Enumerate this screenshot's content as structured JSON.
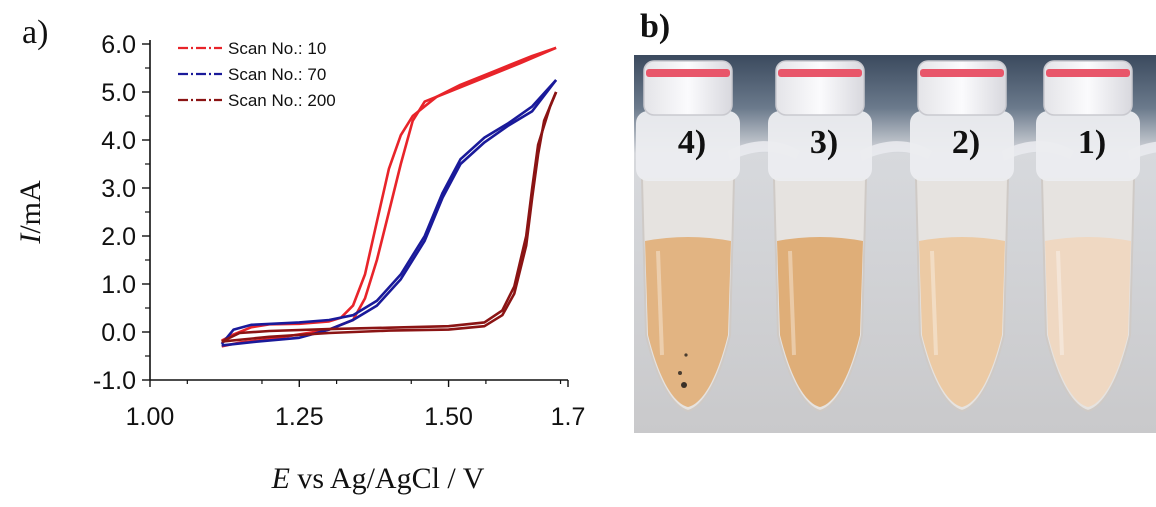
{
  "panel_a_label": "a)",
  "panel_b_label": "b)",
  "chart_data": {
    "type": "line",
    "xlabel_var": "E",
    "xlabel_rest": " vs Ag/AgCl / V",
    "ylabel_var": "I",
    "ylabel_rest": "/mA",
    "xlim": [
      1.0,
      1.7
    ],
    "ylim": [
      -1.0,
      6.0
    ],
    "x_ticks": [
      1.0,
      1.25,
      1.5,
      1.7
    ],
    "x_tick_labels": [
      "1.00",
      "1.25",
      "1.50",
      "1.7"
    ],
    "y_ticks": [
      -1.0,
      0.0,
      1.0,
      2.0,
      3.0,
      4.0,
      5.0,
      6.0
    ],
    "y_tick_labels": [
      "-1.0",
      "0.0",
      "1.0",
      "2.0",
      "3.0",
      "4.0",
      "5.0",
      "6.0"
    ],
    "legend_position": "top-left",
    "series": [
      {
        "name": "Scan No.: 10",
        "color": "#e8242a",
        "forward": [
          [
            1.12,
            -0.18
          ],
          [
            1.14,
            -0.05
          ],
          [
            1.17,
            0.1
          ],
          [
            1.2,
            0.16
          ],
          [
            1.25,
            0.17
          ],
          [
            1.3,
            0.22
          ],
          [
            1.32,
            0.3
          ],
          [
            1.34,
            0.55
          ],
          [
            1.36,
            1.2
          ],
          [
            1.38,
            2.3
          ],
          [
            1.4,
            3.4
          ],
          [
            1.42,
            4.1
          ],
          [
            1.44,
            4.5
          ],
          [
            1.48,
            4.9
          ],
          [
            1.52,
            5.15
          ],
          [
            1.58,
            5.45
          ],
          [
            1.64,
            5.75
          ],
          [
            1.68,
            5.92
          ]
        ],
        "reverse": [
          [
            1.68,
            5.92
          ],
          [
            1.62,
            5.6
          ],
          [
            1.55,
            5.25
          ],
          [
            1.5,
            5.0
          ],
          [
            1.46,
            4.8
          ],
          [
            1.44,
            4.4
          ],
          [
            1.42,
            3.5
          ],
          [
            1.4,
            2.5
          ],
          [
            1.38,
            1.5
          ],
          [
            1.36,
            0.7
          ],
          [
            1.34,
            0.25
          ],
          [
            1.3,
            0.05
          ],
          [
            1.25,
            -0.05
          ],
          [
            1.2,
            -0.15
          ],
          [
            1.15,
            -0.22
          ],
          [
            1.12,
            -0.3
          ]
        ]
      },
      {
        "name": "Scan No.: 70",
        "color": "#1a1a9a",
        "forward": [
          [
            1.12,
            -0.25
          ],
          [
            1.14,
            0.05
          ],
          [
            1.17,
            0.15
          ],
          [
            1.25,
            0.2
          ],
          [
            1.3,
            0.25
          ],
          [
            1.34,
            0.35
          ],
          [
            1.38,
            0.65
          ],
          [
            1.42,
            1.2
          ],
          [
            1.46,
            2.0
          ],
          [
            1.49,
            2.9
          ],
          [
            1.52,
            3.6
          ],
          [
            1.56,
            4.05
          ],
          [
            1.6,
            4.35
          ],
          [
            1.64,
            4.7
          ],
          [
            1.68,
            5.25
          ]
        ],
        "reverse": [
          [
            1.68,
            5.25
          ],
          [
            1.64,
            4.6
          ],
          [
            1.6,
            4.3
          ],
          [
            1.56,
            3.95
          ],
          [
            1.52,
            3.5
          ],
          [
            1.49,
            2.8
          ],
          [
            1.46,
            1.9
          ],
          [
            1.42,
            1.1
          ],
          [
            1.38,
            0.55
          ],
          [
            1.34,
            0.25
          ],
          [
            1.3,
            0.05
          ],
          [
            1.25,
            -0.12
          ],
          [
            1.18,
            -0.2
          ],
          [
            1.12,
            -0.28
          ]
        ]
      },
      {
        "name": "Scan No.: 200",
        "color": "#8b1414",
        "forward": [
          [
            1.12,
            -0.2
          ],
          [
            1.15,
            -0.02
          ],
          [
            1.2,
            0.02
          ],
          [
            1.3,
            0.06
          ],
          [
            1.4,
            0.09
          ],
          [
            1.5,
            0.12
          ],
          [
            1.56,
            0.2
          ],
          [
            1.59,
            0.45
          ],
          [
            1.61,
            0.95
          ],
          [
            1.63,
            2.0
          ],
          [
            1.64,
            3.0
          ],
          [
            1.65,
            3.9
          ],
          [
            1.67,
            4.7
          ],
          [
            1.68,
            5.0
          ]
        ],
        "reverse": [
          [
            1.68,
            5.0
          ],
          [
            1.66,
            4.4
          ],
          [
            1.65,
            3.7
          ],
          [
            1.64,
            2.8
          ],
          [
            1.63,
            1.8
          ],
          [
            1.61,
            0.8
          ],
          [
            1.59,
            0.35
          ],
          [
            1.56,
            0.12
          ],
          [
            1.5,
            0.05
          ],
          [
            1.4,
            0.03
          ],
          [
            1.3,
            -0.02
          ],
          [
            1.2,
            -0.1
          ],
          [
            1.12,
            -0.2
          ]
        ]
      }
    ]
  },
  "photo": {
    "tube_labels": [
      "4)",
      "3)",
      "2)",
      "1)"
    ],
    "liquid_colors": [
      "#e2b482",
      "#dfae78",
      "#eccaa4",
      "#efd8c2"
    ]
  }
}
